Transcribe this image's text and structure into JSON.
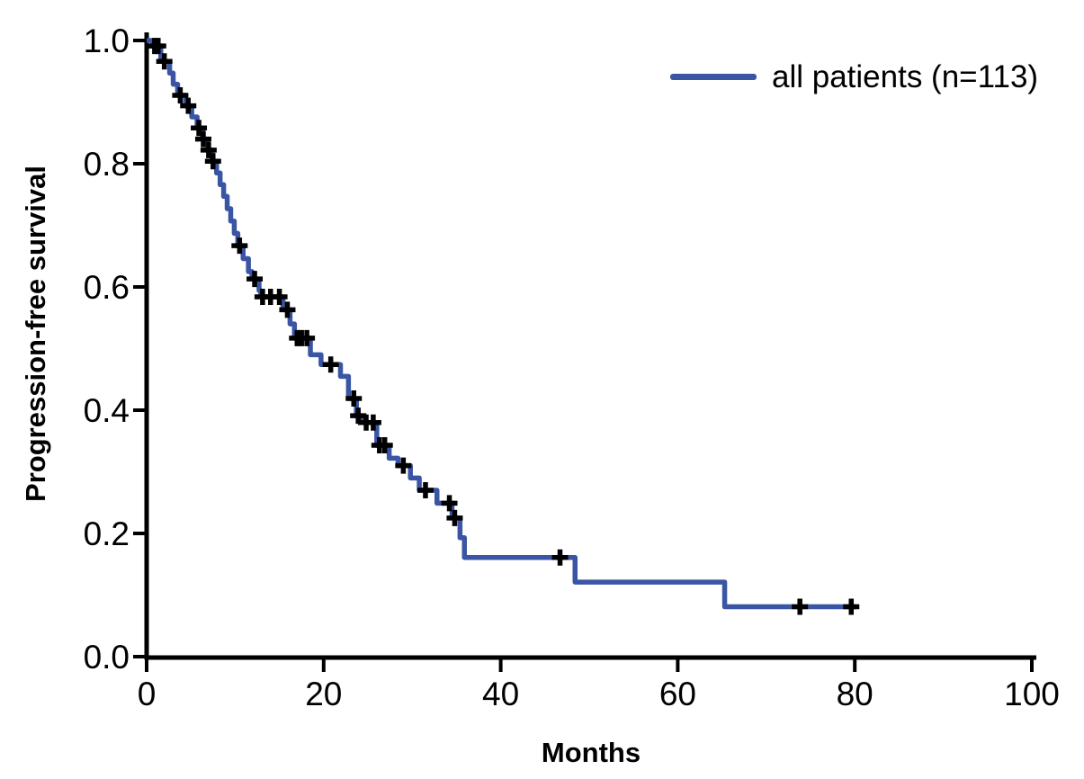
{
  "figure": {
    "background": "#ffffff",
    "axis_color": "#000000",
    "curve_color": "#3a55a4",
    "censor_color": "#000000"
  },
  "chart_data": {
    "type": "line",
    "subtype": "kaplan-meier-step",
    "title": "",
    "xlabel": "Months",
    "ylabel": "Progression-free survival",
    "xlim": [
      0,
      100
    ],
    "ylim": [
      0.0,
      1.0
    ],
    "xticks": [
      0,
      20,
      40,
      60,
      80,
      100
    ],
    "ytick_labels": [
      "0.0",
      "0.2",
      "0.4",
      "0.6",
      "0.8",
      "1.0"
    ],
    "grid": false,
    "legend_position": "top-right",
    "legend": [
      {
        "label": "all patients (n=113)",
        "color": "#3a55a4"
      }
    ],
    "series": [
      {
        "name": "all patients (n=113)",
        "color": "#3a55a4",
        "start": [
          0,
          1.0
        ],
        "end_time": 80.2,
        "steps": [
          [
            0.7,
            0.991
          ],
          [
            1.6,
            0.966
          ],
          [
            2.6,
            0.947
          ],
          [
            3.0,
            0.929
          ],
          [
            3.5,
            0.911
          ],
          [
            4.4,
            0.894
          ],
          [
            5.1,
            0.876
          ],
          [
            5.7,
            0.858
          ],
          [
            6.3,
            0.84
          ],
          [
            6.9,
            0.822
          ],
          [
            7.4,
            0.804
          ],
          [
            7.9,
            0.785
          ],
          [
            8.3,
            0.766
          ],
          [
            8.7,
            0.747
          ],
          [
            9.1,
            0.727
          ],
          [
            9.5,
            0.707
          ],
          [
            9.9,
            0.687
          ],
          [
            10.3,
            0.667
          ],
          [
            10.9,
            0.646
          ],
          [
            11.5,
            0.625
          ],
          [
            11.9,
            0.613
          ],
          [
            12.7,
            0.594
          ],
          [
            12.9,
            0.584
          ],
          [
            15.4,
            0.563
          ],
          [
            16.2,
            0.54
          ],
          [
            16.7,
            0.517
          ],
          [
            18.5,
            0.49
          ],
          [
            19.7,
            0.474
          ],
          [
            21.9,
            0.455
          ],
          [
            22.8,
            0.419
          ],
          [
            23.7,
            0.391
          ],
          [
            24.3,
            0.38
          ],
          [
            26.0,
            0.343
          ],
          [
            27.4,
            0.322
          ],
          [
            28.4,
            0.31
          ],
          [
            29.8,
            0.29
          ],
          [
            30.8,
            0.27
          ],
          [
            32.8,
            0.249
          ],
          [
            34.5,
            0.225
          ],
          [
            35.4,
            0.193
          ],
          [
            35.9,
            0.161
          ],
          [
            48.4,
            0.121
          ],
          [
            65.3,
            0.081
          ]
        ],
        "censors": [
          [
            0.9,
            0.991
          ],
          [
            1.3,
            0.991
          ],
          [
            2.0,
            0.966
          ],
          [
            3.8,
            0.911
          ],
          [
            4.7,
            0.894
          ],
          [
            5.9,
            0.858
          ],
          [
            6.4,
            0.84
          ],
          [
            7.0,
            0.822
          ],
          [
            7.5,
            0.804
          ],
          [
            10.5,
            0.667
          ],
          [
            12.2,
            0.613
          ],
          [
            13.1,
            0.584
          ],
          [
            14.0,
            0.584
          ],
          [
            15.0,
            0.584
          ],
          [
            15.9,
            0.563
          ],
          [
            17.0,
            0.517
          ],
          [
            17.5,
            0.517
          ],
          [
            18.1,
            0.517
          ],
          [
            20.8,
            0.474
          ],
          [
            23.4,
            0.419
          ],
          [
            23.9,
            0.391
          ],
          [
            24.8,
            0.38
          ],
          [
            25.6,
            0.38
          ],
          [
            26.3,
            0.343
          ],
          [
            26.9,
            0.343
          ],
          [
            29.0,
            0.31
          ],
          [
            31.5,
            0.27
          ],
          [
            34.2,
            0.249
          ],
          [
            34.8,
            0.225
          ],
          [
            46.7,
            0.161
          ],
          [
            73.8,
            0.081
          ],
          [
            79.6,
            0.081
          ]
        ]
      }
    ]
  }
}
